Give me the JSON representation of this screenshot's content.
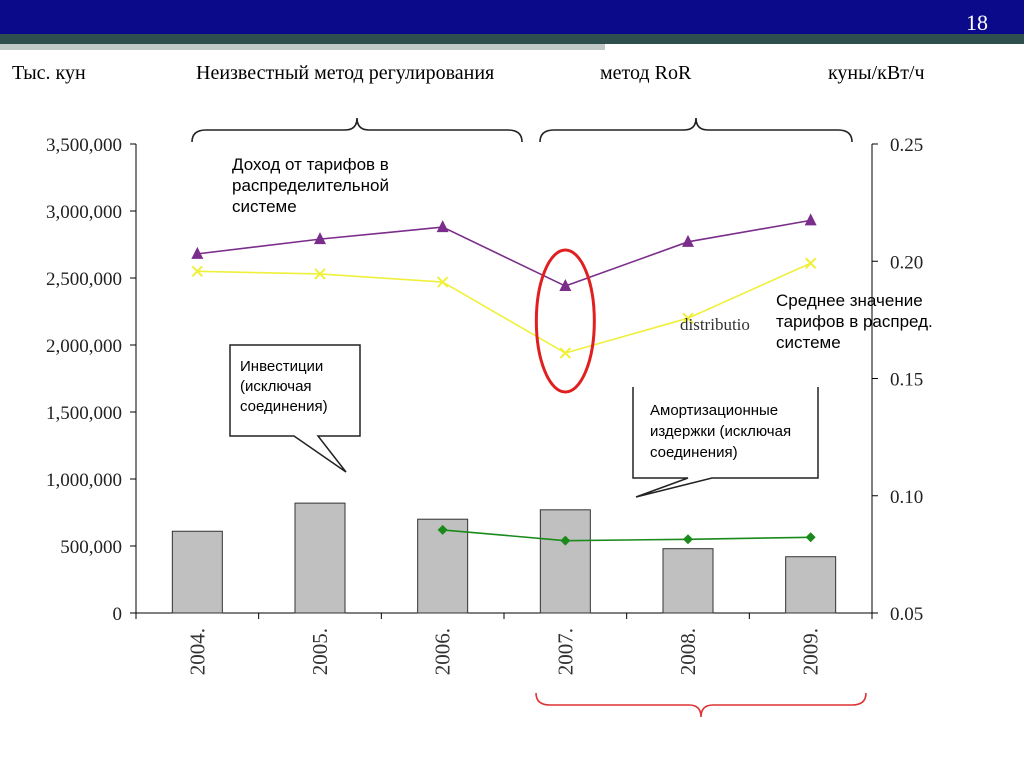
{
  "slide": {
    "number": "18"
  },
  "header": {
    "left": "Тыс. кун",
    "method_unknown": "Неизвестный метод регулирования",
    "method_ror": "метод RoR",
    "right": "куны/кВт/ч"
  },
  "annotations": {
    "revenue": "Доход от тарифов в распределительной системе",
    "investments": "Инвестиции (исключая соединения)",
    "depreciation": "Амортизационные издержки (исключая соединения)",
    "avg_tariff": "Среднее значение тарифов в распред. системе",
    "residual": "distributio"
  },
  "colors": {
    "bar": "#c0c0c0",
    "revenue_line": "#7b2d8b",
    "tariff_line": "#f0f03c",
    "depreciation_line": "#1a8a1a",
    "highlight": "#e02020",
    "header_bar": "#0a0a8a"
  },
  "chart_data": {
    "type": "bar",
    "categories": [
      "2004.",
      "2005.",
      "2006.",
      "2007.",
      "2008.",
      "2009."
    ],
    "y_left": {
      "ticks": [
        "0",
        "500,000",
        "1,000,000",
        "1,500,000",
        "2,000,000",
        "2,500,000",
        "3,000,000",
        "3,500,000"
      ],
      "ylim": [
        0,
        3500000
      ]
    },
    "y_right": {
      "ticks": [
        "0.05",
        "0.10",
        "0.15",
        "0.20",
        "0.25"
      ],
      "ylim": [
        0.05,
        0.25
      ]
    },
    "series": [
      {
        "name": "Инвестиции (исключая соединения)",
        "kind": "bar",
        "axis": "left",
        "values": [
          610000,
          820000,
          700000,
          770000,
          480000,
          420000
        ]
      },
      {
        "name": "Доход от тарифов в распределительной системе",
        "kind": "line",
        "axis": "left",
        "marker": "triangle",
        "values": [
          2680000,
          2790000,
          2880000,
          2440000,
          2770000,
          2930000
        ]
      },
      {
        "name": "Среднее значение тарифов в распред. системе",
        "kind": "line",
        "axis": "left",
        "marker": "x",
        "values": [
          2550000,
          2530000,
          2470000,
          1940000,
          2200000,
          2610000
        ]
      },
      {
        "name": "Амортизационные издержки (исключая соединения)",
        "kind": "line",
        "axis": "left",
        "marker": "diamond",
        "values": [
          null,
          null,
          620000,
          540000,
          550000,
          565000
        ]
      }
    ]
  }
}
